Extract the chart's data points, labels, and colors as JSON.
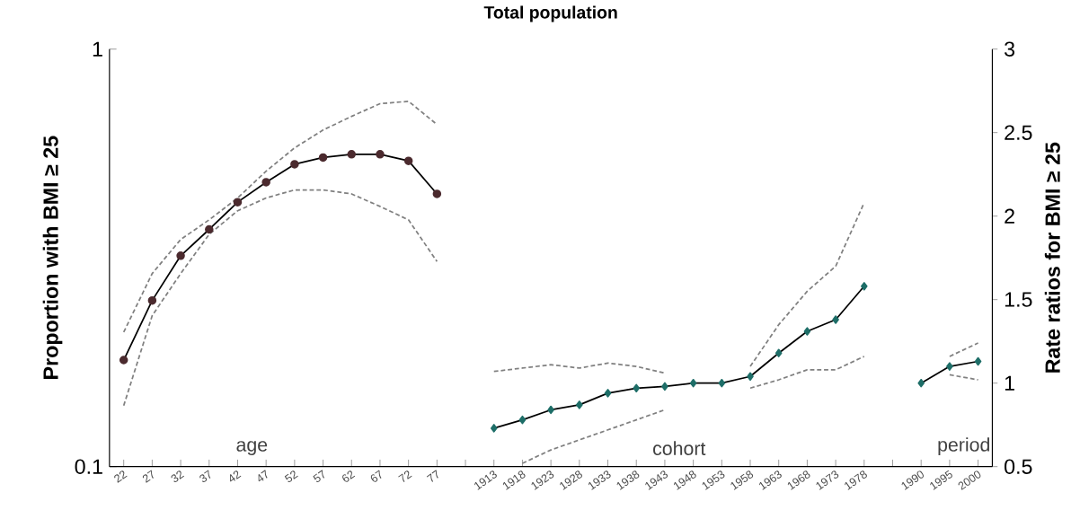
{
  "chart_data": {
    "type": "line",
    "title": "Total population",
    "ylabel": "Proportion with BMI ≥ 25",
    "y2label": "Rate ratios for BMI ≥ 25",
    "categories": [
      "22",
      "27",
      "32",
      "37",
      "42",
      "47",
      "52",
      "57",
      "62",
      "67",
      "72",
      "77",
      null,
      "1913",
      "1918",
      "1923",
      "1928",
      "1933",
      "1938",
      "1943",
      "1948",
      "1953",
      "1958",
      "1963",
      "1968",
      "1973",
      "1978",
      null,
      "1990",
      "1995",
      "2000"
    ],
    "log": "y",
    "ylim": [
      0.1,
      1
    ],
    "yticks": [
      0.1,
      1
    ],
    "y2lim": [
      0.5,
      3
    ],
    "y2ticks": [
      0.5,
      1,
      1.5,
      2,
      2.5,
      3
    ],
    "annotations": [
      "age",
      "cohort",
      "period"
    ],
    "series": [
      {
        "color": "#4b2a2e",
        "marker": "circle",
        "line_style": "solid",
        "values": [
          0.18,
          0.25,
          0.32,
          0.37,
          0.43,
          0.48,
          0.53,
          0.55,
          0.56,
          0.56,
          0.54,
          0.45,
          null,
          null,
          null,
          null,
          null,
          null,
          null,
          null,
          null,
          null,
          null,
          null,
          null,
          null,
          null,
          null,
          null,
          null,
          null
        ]
      },
      {
        "color": "#808080",
        "marker": "none",
        "line_style": "dashed",
        "values": [
          0.21,
          0.29,
          0.35,
          0.39,
          0.44,
          0.51,
          0.58,
          0.64,
          0.69,
          0.74,
          0.75,
          0.66,
          null,
          null,
          null,
          null,
          null,
          null,
          null,
          null,
          null,
          null,
          null,
          null,
          null,
          null,
          null,
          null,
          null,
          null,
          null
        ]
      },
      {
        "color": "#808080",
        "marker": "none",
        "line_style": "dashed",
        "values": [
          0.14,
          0.23,
          0.29,
          0.36,
          0.41,
          0.44,
          0.46,
          0.46,
          0.45,
          0.42,
          0.39,
          0.31,
          null,
          null,
          null,
          null,
          null,
          null,
          null,
          null,
          null,
          null,
          null,
          null,
          null,
          null,
          null,
          null,
          null,
          null,
          null
        ]
      },
      {
        "color": "#1e6e68",
        "marker": "diamond",
        "line_style": "solid",
        "axis": "y2",
        "values": [
          null,
          null,
          null,
          null,
          null,
          null,
          null,
          null,
          null,
          null,
          null,
          null,
          null,
          0.73,
          0.78,
          0.84,
          0.87,
          0.94,
          0.97,
          0.98,
          1.0,
          1.0,
          1.04,
          1.18,
          1.31,
          1.38,
          1.58,
          null,
          1.0,
          1.1,
          1.13
        ]
      },
      {
        "color": "#808080",
        "marker": "none",
        "line_style": "dashed",
        "axis": "y2",
        "values": [
          null,
          null,
          null,
          null,
          null,
          null,
          null,
          null,
          null,
          null,
          null,
          null,
          null,
          1.07,
          1.09,
          1.11,
          1.09,
          1.12,
          1.1,
          1.06,
          null,
          null,
          1.1,
          1.35,
          1.55,
          1.7,
          2.08,
          null,
          null,
          1.16,
          1.24
        ]
      },
      {
        "color": "#808080",
        "marker": "none",
        "line_style": "dashed",
        "axis": "y2",
        "values": [
          null,
          null,
          null,
          null,
          null,
          null,
          null,
          null,
          null,
          null,
          null,
          null,
          null,
          null,
          0.52,
          0.6,
          0.66,
          0.72,
          0.78,
          0.84,
          null,
          null,
          0.97,
          1.02,
          1.08,
          1.08,
          1.16,
          null,
          null,
          1.05,
          1.02
        ]
      }
    ]
  }
}
